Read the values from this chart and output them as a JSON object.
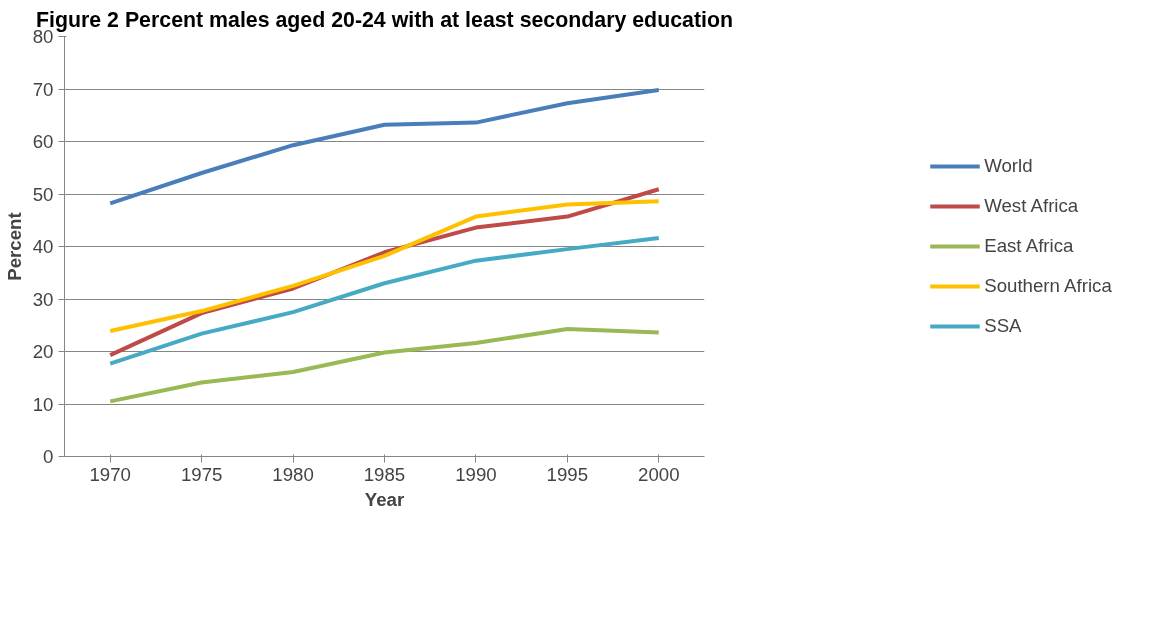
{
  "chart_data": {
    "type": "line",
    "title": "Figure 2 Percent males aged 20-24 with at least secondary education",
    "xlabel": "Year",
    "ylabel": "Percent",
    "categories": [
      "1970",
      "1975",
      "1980",
      "1985",
      "1990",
      "1995",
      "2000"
    ],
    "series": [
      {
        "name": "World",
        "color": "#4a7ebb",
        "values": [
          48.2,
          54,
          59.3,
          63.2,
          63.6,
          67.3,
          69.8
        ]
      },
      {
        "name": "West Africa",
        "color": "#be4b48",
        "values": [
          19.3,
          27.3,
          32,
          38.9,
          43.6,
          45.7,
          50.9
        ]
      },
      {
        "name": "East Africa",
        "color": "#98b954",
        "values": [
          10.5,
          14.1,
          16.1,
          19.8,
          21.6,
          24.3,
          23.6
        ]
      },
      {
        "name": "Southern Africa",
        "color": "#ffc000",
        "values": [
          23.9,
          27.7,
          32.5,
          38.2,
          45.7,
          48,
          48.6
        ]
      },
      {
        "name": "SSA",
        "color": "#46aac5",
        "values": [
          17.7,
          23.4,
          27.5,
          33,
          37.3,
          39.5,
          41.6
        ]
      }
    ],
    "ylim": [
      0,
      80
    ],
    "yticks": [
      0,
      10,
      20,
      30,
      40,
      50,
      60,
      70,
      80
    ],
    "grid": "y",
    "legend": "right",
    "marker": "none",
    "line_style": "solid"
  }
}
